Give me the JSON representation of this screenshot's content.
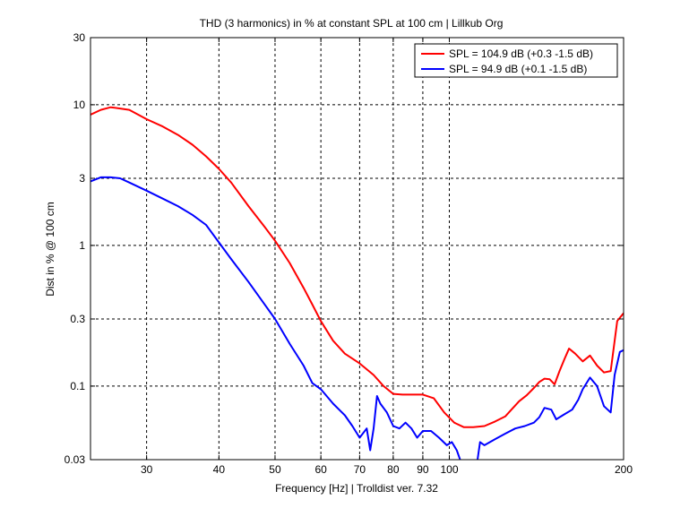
{
  "chart_data": {
    "type": "line",
    "title": "THD (3 harmonics) in % at constant SPL at 100 cm | Lillkub Org",
    "xlabel": "Frequency [Hz] | Trolldist ver. 7.32",
    "ylabel": "Dist in % @ 100 cm",
    "xscale": "log",
    "yscale": "log",
    "xlim": [
      24,
      200
    ],
    "ylim": [
      0.03,
      30
    ],
    "xticks": [
      30,
      40,
      50,
      60,
      70,
      80,
      90,
      100,
      200
    ],
    "xtick_labels": [
      "30",
      "40",
      "50",
      "60",
      "70",
      "80",
      "90",
      "100",
      "200"
    ],
    "yticks": [
      0.03,
      0.1,
      0.3,
      1,
      3,
      10,
      30
    ],
    "ytick_labels": [
      "0.03",
      "0.1",
      "0.3",
      "1",
      "3",
      "10",
      "30"
    ],
    "grid": true,
    "legend_position": "top-right",
    "series": [
      {
        "name": "SPL = 104.9 dB (+0.3 -1.5 dB)",
        "color": "#ff0000",
        "x": [
          24,
          25,
          26,
          27,
          28,
          30,
          32,
          34,
          36,
          38,
          40,
          42,
          45,
          48,
          50,
          53,
          56,
          58,
          60,
          63,
          66,
          70,
          74,
          77,
          80,
          83,
          86,
          90,
          94,
          98,
          102,
          106,
          110,
          115,
          120,
          125,
          128,
          132,
          136,
          140,
          143,
          146,
          149,
          152,
          155,
          158,
          161,
          165,
          170,
          175,
          180,
          185,
          190,
          195,
          200
        ],
        "y": [
          8.5,
          9.2,
          9.6,
          9.4,
          9.2,
          7.9,
          7.0,
          6.1,
          5.2,
          4.3,
          3.5,
          2.8,
          1.9,
          1.35,
          1.08,
          0.75,
          0.5,
          0.38,
          0.29,
          0.21,
          0.17,
          0.145,
          0.12,
          0.1,
          0.088,
          0.087,
          0.087,
          0.087,
          0.082,
          0.065,
          0.055,
          0.051,
          0.051,
          0.052,
          0.056,
          0.061,
          0.068,
          0.078,
          0.086,
          0.097,
          0.107,
          0.113,
          0.112,
          0.103,
          0.128,
          0.155,
          0.185,
          0.17,
          0.15,
          0.165,
          0.14,
          0.125,
          0.128,
          0.29,
          0.33
        ]
      },
      {
        "name": "SPL = 94.9 dB (+0.1 -1.5 dB)",
        "color": "#0000ff",
        "x": [
          24,
          25,
          26,
          27,
          28,
          30,
          32,
          34,
          36,
          38,
          40,
          42,
          45,
          48,
          50,
          53,
          56,
          58,
          60,
          63,
          66,
          68,
          70,
          72,
          73,
          74,
          75,
          76,
          78,
          80,
          82,
          84,
          86,
          88,
          90,
          93,
          96,
          99,
          101,
          103,
          105,
          107,
          109,
          111,
          113,
          115,
          120,
          125,
          130,
          135,
          140,
          143,
          146,
          150,
          153,
          158,
          163,
          167,
          170,
          175,
          180,
          185,
          190,
          193,
          197,
          200
        ],
        "y": [
          2.85,
          3.05,
          3.05,
          3.0,
          2.8,
          2.45,
          2.15,
          1.9,
          1.65,
          1.4,
          1.05,
          0.8,
          0.55,
          0.38,
          0.3,
          0.2,
          0.14,
          0.105,
          0.095,
          0.075,
          0.062,
          0.052,
          0.043,
          0.05,
          0.035,
          0.05,
          0.085,
          0.075,
          0.065,
          0.052,
          0.05,
          0.055,
          0.05,
          0.043,
          0.048,
          0.048,
          0.043,
          0.038,
          0.04,
          0.035,
          0.028,
          0.022,
          0.028,
          0.024,
          0.04,
          0.038,
          0.042,
          0.046,
          0.05,
          0.052,
          0.055,
          0.06,
          0.07,
          0.068,
          0.058,
          0.063,
          0.068,
          0.08,
          0.095,
          0.115,
          0.1,
          0.072,
          0.065,
          0.12,
          0.175,
          0.18
        ]
      }
    ]
  }
}
